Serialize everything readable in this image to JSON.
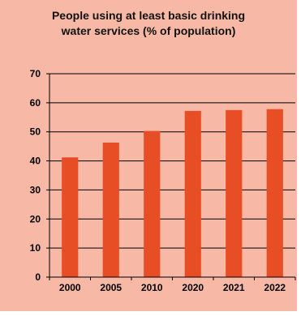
{
  "chart_data": {
    "type": "bar",
    "title_lines": [
      "People using at least basic drinking",
      "water services (% of population)"
    ],
    "categories": [
      "2000",
      "2005",
      "2010",
      "2020",
      "2021",
      "2022"
    ],
    "values": [
      41.2,
      46.3,
      50.3,
      57.2,
      57.5,
      57.8
    ],
    "ylim": [
      0,
      70
    ],
    "yticks": [
      0,
      10,
      20,
      30,
      40,
      50,
      60,
      70
    ],
    "xlabel": "",
    "ylabel": "",
    "grid": true,
    "legend": "none",
    "colors": {
      "panel_background": "#f7b9a5",
      "bar": "#e84e26",
      "axis": "#000000",
      "gridline": "#000000"
    }
  }
}
